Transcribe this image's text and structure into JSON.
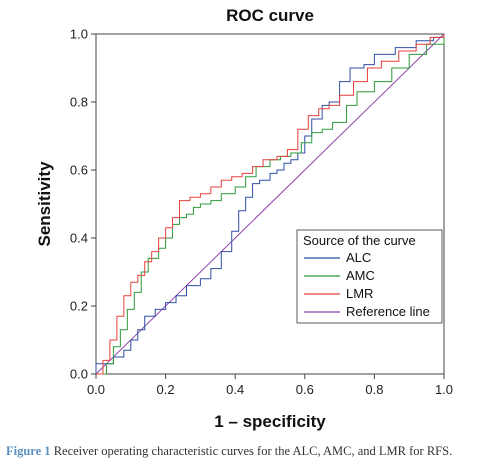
{
  "chart_data": {
    "type": "line",
    "title": "ROC curve",
    "xlabel": "1 – specificity",
    "ylabel": "Sensitivity",
    "xlim": [
      0,
      1
    ],
    "ylim": [
      0,
      1
    ],
    "x_ticks": [
      "0.0",
      "0.2",
      "0.4",
      "0.6",
      "0.8",
      "1.0"
    ],
    "y_ticks": [
      "0.0",
      "0.2",
      "0.4",
      "0.6",
      "0.8",
      "1.0"
    ],
    "grid": false,
    "legend": {
      "title": "Source of the curve",
      "placement": "right-middle"
    },
    "series": [
      {
        "name": "ALC",
        "color": "#2f4fa8",
        "points": [
          [
            0,
            0
          ],
          [
            0,
            0.03
          ],
          [
            0.05,
            0.05
          ],
          [
            0.08,
            0.07
          ],
          [
            0.1,
            0.1
          ],
          [
            0.12,
            0.13
          ],
          [
            0.14,
            0.17
          ],
          [
            0.17,
            0.19
          ],
          [
            0.2,
            0.21
          ],
          [
            0.23,
            0.23
          ],
          [
            0.26,
            0.26
          ],
          [
            0.3,
            0.28
          ],
          [
            0.33,
            0.31
          ],
          [
            0.36,
            0.36
          ],
          [
            0.39,
            0.42
          ],
          [
            0.41,
            0.48
          ],
          [
            0.43,
            0.52
          ],
          [
            0.45,
            0.56
          ],
          [
            0.47,
            0.57
          ],
          [
            0.5,
            0.59
          ],
          [
            0.52,
            0.6
          ],
          [
            0.54,
            0.62
          ],
          [
            0.56,
            0.63
          ],
          [
            0.58,
            0.65
          ],
          [
            0.6,
            0.7
          ],
          [
            0.62,
            0.75
          ],
          [
            0.65,
            0.79
          ],
          [
            0.67,
            0.8
          ],
          [
            0.7,
            0.86
          ],
          [
            0.73,
            0.9
          ],
          [
            0.77,
            0.91
          ],
          [
            0.8,
            0.94
          ],
          [
            0.86,
            0.96
          ],
          [
            0.92,
            0.98
          ],
          [
            0.97,
            0.99
          ],
          [
            1,
            1
          ]
        ]
      },
      {
        "name": "AMC",
        "color": "#2e9a3a",
        "points": [
          [
            0,
            0
          ],
          [
            0.03,
            0.03
          ],
          [
            0.05,
            0.08
          ],
          [
            0.07,
            0.13
          ],
          [
            0.09,
            0.19
          ],
          [
            0.11,
            0.24
          ],
          [
            0.13,
            0.3
          ],
          [
            0.15,
            0.34
          ],
          [
            0.18,
            0.37
          ],
          [
            0.2,
            0.4
          ],
          [
            0.22,
            0.44
          ],
          [
            0.24,
            0.46
          ],
          [
            0.26,
            0.47
          ],
          [
            0.28,
            0.49
          ],
          [
            0.3,
            0.5
          ],
          [
            0.33,
            0.51
          ],
          [
            0.36,
            0.53
          ],
          [
            0.4,
            0.55
          ],
          [
            0.43,
            0.58
          ],
          [
            0.46,
            0.61
          ],
          [
            0.5,
            0.63
          ],
          [
            0.53,
            0.64
          ],
          [
            0.56,
            0.65
          ],
          [
            0.59,
            0.68
          ],
          [
            0.62,
            0.71
          ],
          [
            0.65,
            0.72
          ],
          [
            0.68,
            0.74
          ],
          [
            0.72,
            0.79
          ],
          [
            0.75,
            0.83
          ],
          [
            0.8,
            0.86
          ],
          [
            0.85,
            0.9
          ],
          [
            0.9,
            0.94
          ],
          [
            0.95,
            0.97
          ],
          [
            1,
            1
          ]
        ]
      },
      {
        "name": "LMR",
        "color": "#e8413c",
        "points": [
          [
            0,
            0
          ],
          [
            0.02,
            0.04
          ],
          [
            0.04,
            0.1
          ],
          [
            0.06,
            0.17
          ],
          [
            0.08,
            0.23
          ],
          [
            0.1,
            0.27
          ],
          [
            0.12,
            0.29
          ],
          [
            0.14,
            0.33
          ],
          [
            0.16,
            0.36
          ],
          [
            0.18,
            0.4
          ],
          [
            0.2,
            0.43
          ],
          [
            0.22,
            0.46
          ],
          [
            0.24,
            0.51
          ],
          [
            0.27,
            0.52
          ],
          [
            0.3,
            0.53
          ],
          [
            0.33,
            0.55
          ],
          [
            0.36,
            0.57
          ],
          [
            0.39,
            0.58
          ],
          [
            0.42,
            0.59
          ],
          [
            0.45,
            0.61
          ],
          [
            0.48,
            0.63
          ],
          [
            0.52,
            0.64
          ],
          [
            0.55,
            0.66
          ],
          [
            0.58,
            0.72
          ],
          [
            0.61,
            0.76
          ],
          [
            0.64,
            0.78
          ],
          [
            0.67,
            0.79
          ],
          [
            0.7,
            0.82
          ],
          [
            0.74,
            0.86
          ],
          [
            0.78,
            0.9
          ],
          [
            0.82,
            0.92
          ],
          [
            0.87,
            0.95
          ],
          [
            0.92,
            0.97
          ],
          [
            0.96,
            0.99
          ],
          [
            1,
            1
          ]
        ]
      },
      {
        "name": "Reference line",
        "color": "#8e44ad",
        "points": [
          [
            0,
            0
          ],
          [
            1,
            1
          ]
        ]
      }
    ]
  },
  "caption": {
    "label": "Figure 1",
    "text": " Receiver operating characteristic curves for the ALC, AMC, and LMR for RFS."
  }
}
